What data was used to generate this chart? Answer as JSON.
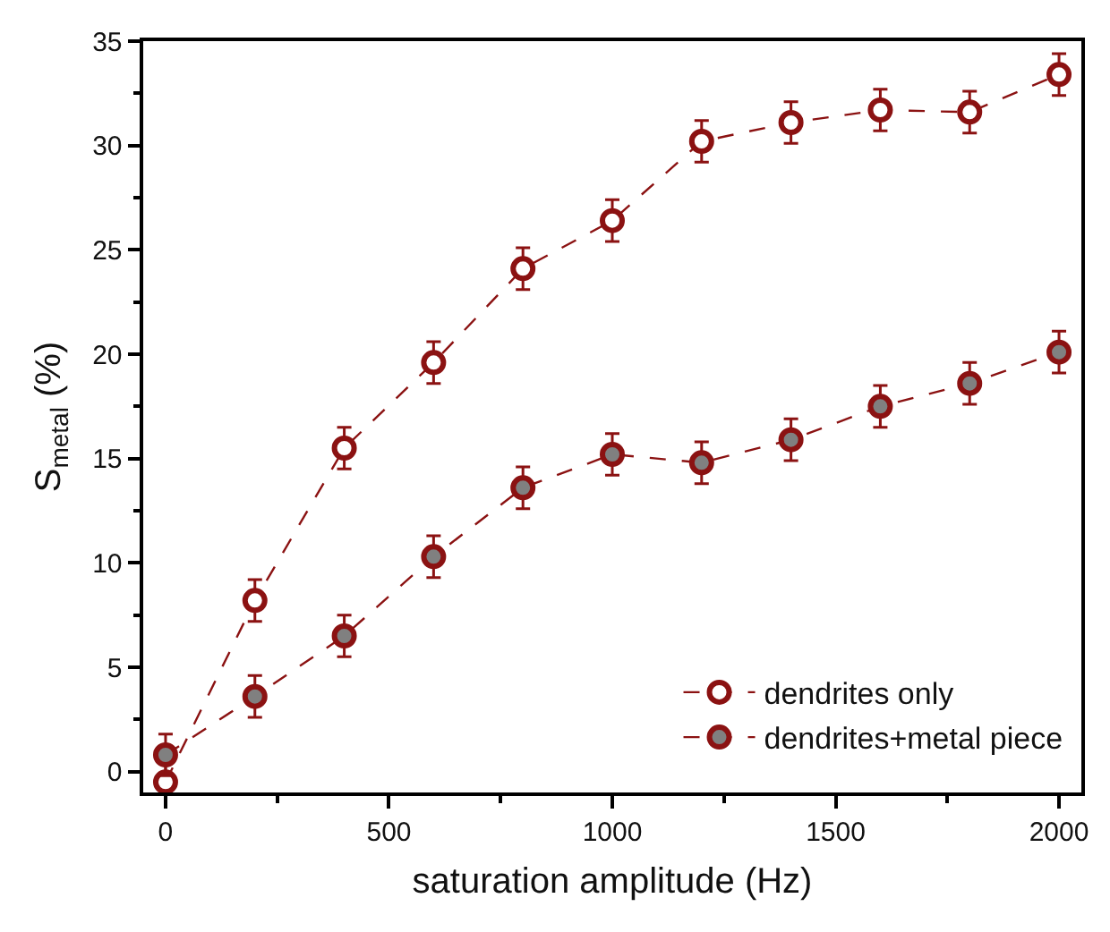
{
  "chart_data": {
    "type": "line",
    "xlabel": "saturation amplitude (Hz)",
    "ylabel": "S$_{metal}$ (%)",
    "x": [
      0,
      200,
      400,
      600,
      800,
      1000,
      1200,
      1400,
      1600,
      1800,
      2000
    ],
    "series": [
      {
        "name": "dendrites only",
        "color": "#8b1212",
        "values": [
          -0.5,
          8.2,
          15.5,
          19.6,
          24.1,
          26.4,
          30.2,
          31.1,
          31.7,
          31.6,
          33.4
        ],
        "errors": [
          1,
          1,
          1,
          1,
          1,
          1,
          1,
          1,
          1,
          1,
          1
        ]
      },
      {
        "name": "dendrites+metal piece",
        "color": "#8b1212",
        "values": [
          0.8,
          3.6,
          6.5,
          10.3,
          13.6,
          15.2,
          14.8,
          15.9,
          17.5,
          18.6,
          20.1
        ],
        "errors": [
          1,
          1,
          1,
          1,
          1,
          1,
          1,
          1,
          1,
          1,
          1
        ]
      }
    ],
    "xlim": [
      -50,
      2050
    ],
    "xticks": [
      0,
      500,
      1000,
      1500,
      2000
    ],
    "ylim": [
      -1,
      35
    ],
    "yticks": [
      0,
      5,
      10,
      15,
      20,
      25,
      30,
      35
    ],
    "grid": false,
    "legend": "bottom right",
    "marker": "circle",
    "line_style": "dashed"
  }
}
